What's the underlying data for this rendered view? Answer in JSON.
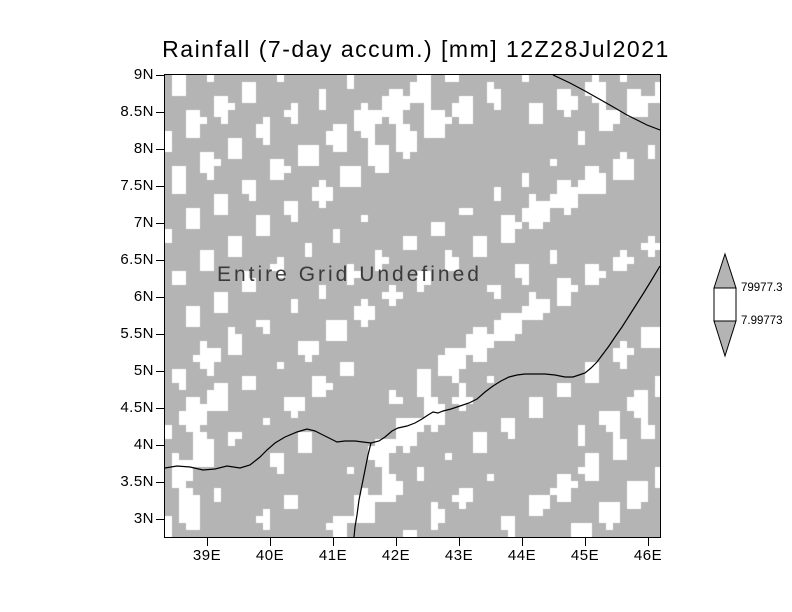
{
  "plot": {
    "title": "Rainfall (7-day accum.) [mm] 12Z28Jul2021",
    "annotation": "Entire Grid Undefined"
  },
  "axes": {
    "y_ticks": [
      "9N",
      "8.5N",
      "8N",
      "7.5N",
      "7N",
      "6.5N",
      "6N",
      "5.5N",
      "5N",
      "4.5N",
      "4N",
      "3.5N",
      "3N"
    ],
    "x_ticks": [
      "39E",
      "40E",
      "41E",
      "42E",
      "43E",
      "44E",
      "45E",
      "46E"
    ]
  },
  "colorbar": {
    "labels": [
      "79977.3",
      "7.99773"
    ]
  },
  "colors": {
    "grid_fill": "#b4b4b4",
    "speckle": "#ffffff",
    "line": "#000000"
  },
  "chart_data": {
    "type": "heatmap",
    "title": "Rainfall (7-day accum.) [mm] 12Z28Jul2021",
    "variable": "Rainfall (7-day accum.)",
    "units": "mm",
    "valid_time": "12Z28Jul2021",
    "x_ticks": [
      "39E",
      "40E",
      "41E",
      "42E",
      "43E",
      "44E",
      "45E",
      "46E"
    ],
    "y_ticks": [
      "9N",
      "8.5N",
      "8N",
      "7.5N",
      "7N",
      "6.5N",
      "6N",
      "5.5N",
      "5N",
      "4.5N",
      "4N",
      "3.5N",
      "3N"
    ],
    "values": "undefined",
    "status_message": "Entire Grid Undefined",
    "colorbar_levels": [
      7.99773,
      79977.3
    ],
    "colorbar_labels": [
      "79977.3",
      "7.99773"
    ],
    "legend_position": "right",
    "grid": false,
    "map_overlay": "coastlines/borders"
  }
}
